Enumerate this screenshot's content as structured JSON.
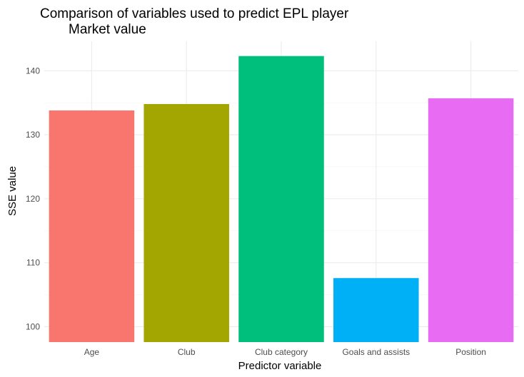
{
  "chart_data": {
    "type": "bar",
    "title_lines": [
      "Comparison of variables used to predict EPL player",
      "Market value"
    ],
    "xlabel": "Predictor variable",
    "ylabel": "SSE value",
    "categories": [
      "Age",
      "Club",
      "Club category",
      "Goals and assists",
      "Position"
    ],
    "values": [
      133.8,
      134.8,
      142.3,
      107.6,
      135.7
    ],
    "colors": [
      "#F8766D",
      "#A3A500",
      "#00BF7D",
      "#00B0F6",
      "#E76BF3"
    ],
    "yticks": [
      100,
      110,
      120,
      130,
      140
    ],
    "ylim": [
      97.6,
      144.6
    ],
    "grid": true,
    "legend": "none"
  }
}
